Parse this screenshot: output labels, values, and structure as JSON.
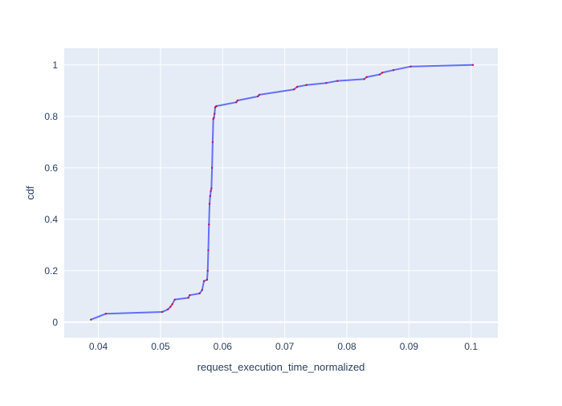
{
  "chart_data": {
    "type": "line",
    "title": "",
    "xlabel": "request_execution_time_normalized",
    "ylabel": "cdf",
    "xlim": [
      0.0345,
      0.1043
    ],
    "ylim": [
      -0.06,
      1.065
    ],
    "x_ticks": [
      0.04,
      0.05,
      0.06,
      0.07,
      0.08,
      0.09,
      0.1
    ],
    "x_tick_labels": [
      "0.04",
      "0.05",
      "0.06",
      "0.07",
      "0.08",
      "0.09",
      "0.1"
    ],
    "y_ticks": [
      0,
      0.2,
      0.4,
      0.6,
      0.8,
      1
    ],
    "y_tick_labels": [
      "0",
      "0.2",
      "0.4",
      "0.6",
      "0.8",
      "1"
    ],
    "grid": true,
    "legend": "none",
    "colors": {
      "plot_bg": "#e5ecf6",
      "grid": "#ffffff",
      "line": "#636efa",
      "marker": "#c0144a",
      "text": "#2a3f5f"
    },
    "series": [
      {
        "x": [
          0.0388,
          0.0412,
          0.0503,
          0.0512,
          0.0516,
          0.0519,
          0.0523,
          0.0545,
          0.0547,
          0.0563,
          0.0567,
          0.057,
          0.0575,
          0.0576,
          0.0577,
          0.0578,
          0.0579,
          0.058,
          0.0581,
          0.0582,
          0.0583,
          0.0584,
          0.0585,
          0.0586,
          0.0587,
          0.0588,
          0.0589,
          0.059,
          0.0622,
          0.0624,
          0.0657,
          0.0659,
          0.0715,
          0.072,
          0.0735,
          0.0767,
          0.0785,
          0.0828,
          0.0832,
          0.0853,
          0.0857,
          0.0875,
          0.0903,
          0.1003
        ],
        "y": [
          0.01,
          0.033,
          0.04,
          0.05,
          0.06,
          0.07,
          0.088,
          0.095,
          0.105,
          0.112,
          0.125,
          0.16,
          0.165,
          0.2,
          0.28,
          0.38,
          0.46,
          0.49,
          0.51,
          0.52,
          0.6,
          0.7,
          0.79,
          0.795,
          0.81,
          0.835,
          0.838,
          0.84,
          0.855,
          0.862,
          0.878,
          0.884,
          0.905,
          0.915,
          0.922,
          0.93,
          0.938,
          0.945,
          0.953,
          0.963,
          0.97,
          0.98,
          0.994,
          1.0
        ]
      }
    ]
  }
}
